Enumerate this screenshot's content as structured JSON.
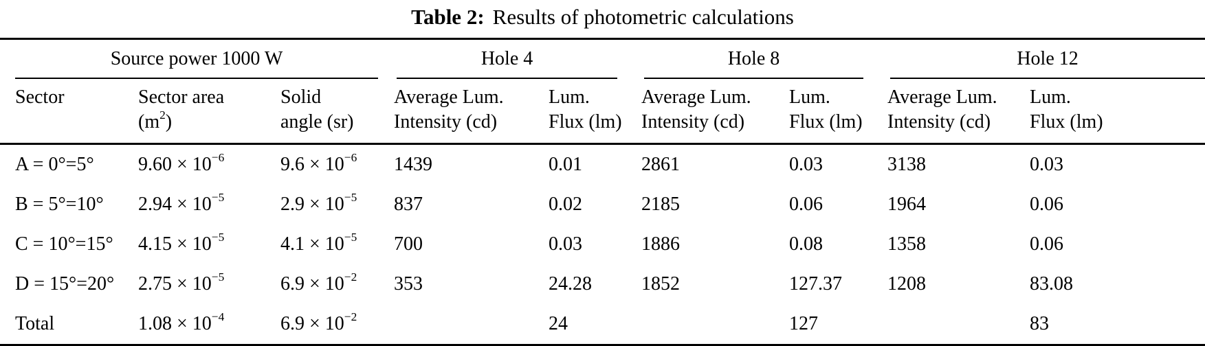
{
  "title": {
    "label": "Table 2:",
    "text": "Results of photometric calculations"
  },
  "table": {
    "groups": [
      {
        "label": "Source power 1000 W"
      },
      {
        "label": "Hole 4"
      },
      {
        "label": "Hole 8"
      },
      {
        "label": "Hole 12"
      }
    ],
    "columns": [
      "Sector",
      "Sector area\n(m^{2})",
      "Solid\nangle (sr)",
      "Average Lum.\nIntensity (cd)",
      "Lum.\nFlux (lm)",
      "Average Lum.\nIntensity (cd)",
      "Lum.\nFlux (lm)",
      "Average Lum.\nIntensity (cd)",
      "Lum.\nFlux (lm)"
    ],
    "rows": [
      {
        "cells": [
          "A = 0°=5°",
          "9.60 × 10^{−6}",
          "9.6 × 10^{−6}",
          "1439",
          "0.01",
          "2861",
          "0.03",
          "3138",
          "0.03"
        ]
      },
      {
        "cells": [
          "B = 5°=10°",
          "2.94 × 10^{−5}",
          "2.9 × 10^{−5}",
          "837",
          "0.02",
          "2185",
          "0.06",
          "1964",
          "0.06"
        ]
      },
      {
        "cells": [
          "C = 10°=15°",
          "4.15 × 10^{−5}",
          "4.1 × 10^{−5}",
          "700",
          "0.03",
          "1886",
          "0.08",
          "1358",
          "0.06"
        ]
      },
      {
        "cells": [
          "D = 15°=20°",
          "2.75 × 10^{−5}",
          "6.9 × 10^{−2}",
          "353",
          "24.28",
          "1852",
          "127.37",
          "1208",
          "83.08"
        ]
      },
      {
        "cells": [
          "Total",
          "1.08 × 10^{−4}",
          "6.9 × 10^{−2}",
          "",
          "24",
          "",
          "127",
          "",
          "83"
        ]
      }
    ]
  }
}
